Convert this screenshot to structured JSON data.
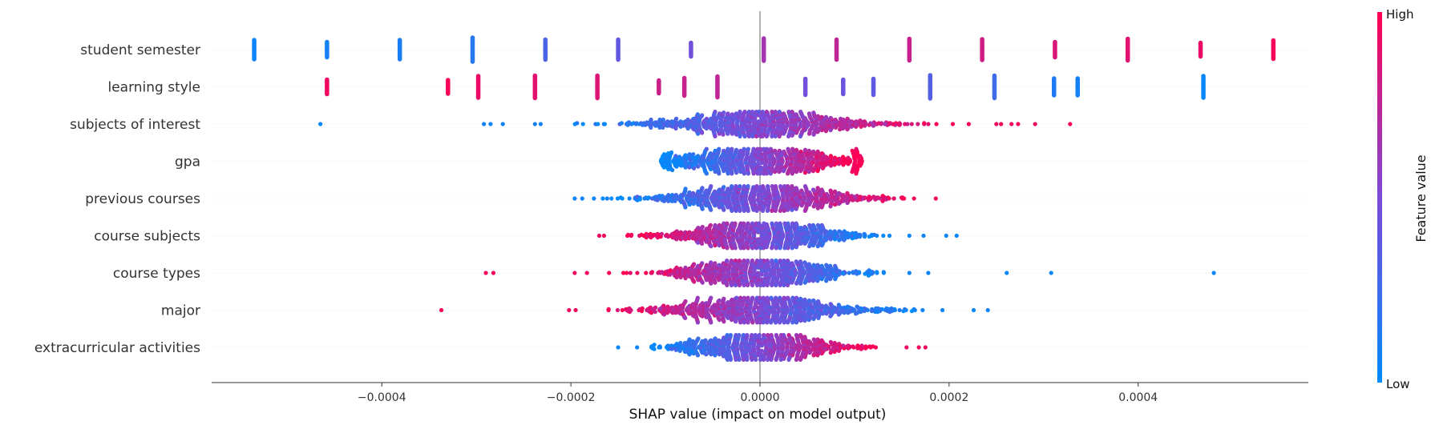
{
  "chart_data": {
    "type": "scatter",
    "subtype": "shap-beeswarm",
    "xlabel": "SHAP value (impact on model output)",
    "xlim": [
      -0.00058,
      0.00058
    ],
    "xticks": [
      -0.0004,
      -0.0002,
      0.0,
      0.0002,
      0.0004
    ],
    "xtick_labels": [
      "−0.0004",
      "−0.0002",
      "0.0000",
      "0.0002",
      "0.0004"
    ],
    "zero_line": true,
    "row_gridlines": true,
    "colorbar": {
      "title": "Feature value",
      "high_label": "High",
      "low_label": "Low",
      "low_color": "#008bfb",
      "mid_color": "#7d4ad8",
      "high_color": "#ff0052"
    },
    "features": [
      {
        "name": "student semester",
        "kind": "discrete",
        "points": [
          {
            "x": -0.000535,
            "v": 0.05
          },
          {
            "x": -0.000458,
            "v": 0.07
          },
          {
            "x": -0.000381,
            "v": 0.1
          },
          {
            "x": -0.000304,
            "v": 0.15
          },
          {
            "x": -0.000227,
            "v": 0.3
          },
          {
            "x": -0.00015,
            "v": 0.4
          },
          {
            "x": -7.3e-05,
            "v": 0.45
          },
          {
            "x": 4e-06,
            "v": 0.65
          },
          {
            "x": 8.1e-05,
            "v": 0.75
          },
          {
            "x": 0.000158,
            "v": 0.78
          },
          {
            "x": 0.000235,
            "v": 0.82
          },
          {
            "x": 0.000312,
            "v": 0.85
          },
          {
            "x": 0.000389,
            "v": 0.88
          },
          {
            "x": 0.000466,
            "v": 0.92
          },
          {
            "x": 0.000543,
            "v": 0.97
          }
        ]
      },
      {
        "name": "learning style",
        "kind": "discrete",
        "points": [
          {
            "x": -0.000458,
            "v": 0.95
          },
          {
            "x": -0.00033,
            "v": 0.97
          },
          {
            "x": -0.000298,
            "v": 0.93
          },
          {
            "x": -0.000238,
            "v": 0.9
          },
          {
            "x": -0.000172,
            "v": 0.87
          },
          {
            "x": -0.000107,
            "v": 0.8
          },
          {
            "x": -8e-05,
            "v": 0.78
          },
          {
            "x": -4.5e-05,
            "v": 0.75
          },
          {
            "x": 4.8e-05,
            "v": 0.45
          },
          {
            "x": 8.8e-05,
            "v": 0.42
          },
          {
            "x": 0.00012,
            "v": 0.38
          },
          {
            "x": 0.00018,
            "v": 0.33
          },
          {
            "x": 0.000248,
            "v": 0.25
          },
          {
            "x": 0.000311,
            "v": 0.12
          },
          {
            "x": 0.000336,
            "v": 0.08
          },
          {
            "x": 0.000469,
            "v": 0.03
          }
        ]
      },
      {
        "name": "subjects of interest",
        "kind": "continuous",
        "x_range": [
          -0.000205,
          0.000225
        ],
        "spread": 5.8e-05,
        "corr": 1,
        "outliers": [
          {
            "x": -0.000465,
            "v": 0.02
          },
          {
            "x": -0.000292,
            "v": 0.06
          },
          {
            "x": -0.000285,
            "v": 0.05
          },
          {
            "x": -0.000272,
            "v": 0.06
          },
          {
            "x": -0.000238,
            "v": 0.08
          },
          {
            "x": -0.000232,
            "v": 0.07
          },
          {
            "x": 0.00025,
            "v": 0.96
          },
          {
            "x": 0.000255,
            "v": 0.97
          },
          {
            "x": 0.000266,
            "v": 0.95
          },
          {
            "x": 0.000273,
            "v": 0.96
          },
          {
            "x": 0.000291,
            "v": 0.95
          },
          {
            "x": 0.000328,
            "v": 0.97
          }
        ]
      },
      {
        "name": "gpa",
        "kind": "continuous",
        "x_range": [
          -0.000105,
          0.000108
        ],
        "spread": 6e-05,
        "corr": 1,
        "outliers": []
      },
      {
        "name": "previous courses",
        "kind": "continuous",
        "x_range": [
          -0.000178,
          0.000158
        ],
        "spread": 5.5e-05,
        "corr": 1,
        "outliers": [
          {
            "x": -0.000196,
            "v": 0.05
          },
          {
            "x": -0.000188,
            "v": 0.06
          },
          {
            "x": 0.000163,
            "v": 0.95
          },
          {
            "x": 0.000186,
            "v": 0.96
          }
        ]
      },
      {
        "name": "course subjects",
        "kind": "continuous",
        "x_range": [
          -0.000145,
          0.000148
        ],
        "spread": 5e-05,
        "corr": -1,
        "outliers": [
          {
            "x": -0.00017,
            "v": 0.95
          },
          {
            "x": -0.000165,
            "v": 0.96
          },
          {
            "x": 0.000158,
            "v": 0.05
          },
          {
            "x": 0.000173,
            "v": 0.06
          },
          {
            "x": 0.000197,
            "v": 0.05
          },
          {
            "x": 0.000208,
            "v": 0.04
          }
        ]
      },
      {
        "name": "course types",
        "kind": "continuous",
        "x_range": [
          -0.000162,
          0.000135
        ],
        "spread": 4.8e-05,
        "corr": -1,
        "outliers": [
          {
            "x": -0.00029,
            "v": 0.96
          },
          {
            "x": -0.000282,
            "v": 0.95
          },
          {
            "x": -0.000196,
            "v": 0.95
          },
          {
            "x": -0.000183,
            "v": 0.94
          },
          {
            "x": 0.000158,
            "v": 0.06
          },
          {
            "x": 0.000178,
            "v": 0.05
          },
          {
            "x": 0.000261,
            "v": 0.04
          },
          {
            "x": 0.000308,
            "v": 0.05
          },
          {
            "x": 0.00048,
            "v": 0.03
          }
        ]
      },
      {
        "name": "major",
        "kind": "continuous",
        "x_range": [
          -0.00019,
          0.000165
        ],
        "spread": 5.5e-05,
        "corr": -1,
        "outliers": [
          {
            "x": -0.000337,
            "v": 0.97
          },
          {
            "x": -0.000202,
            "v": 0.95
          },
          {
            "x": -0.000195,
            "v": 0.96
          },
          {
            "x": 0.000172,
            "v": 0.06
          },
          {
            "x": 0.000193,
            "v": 0.05
          },
          {
            "x": 0.000226,
            "v": 0.04
          },
          {
            "x": 0.000241,
            "v": 0.05
          }
        ]
      },
      {
        "name": "extracurricular activities",
        "kind": "continuous",
        "x_range": [
          -0.000115,
          0.000125
        ],
        "spread": 4.5e-05,
        "corr": 1,
        "outliers": [
          {
            "x": -0.00015,
            "v": 0.04
          },
          {
            "x": -0.00013,
            "v": 0.05
          },
          {
            "x": 0.000155,
            "v": 0.94
          },
          {
            "x": 0.000168,
            "v": 0.96
          },
          {
            "x": 0.000175,
            "v": 0.95
          }
        ]
      }
    ]
  }
}
